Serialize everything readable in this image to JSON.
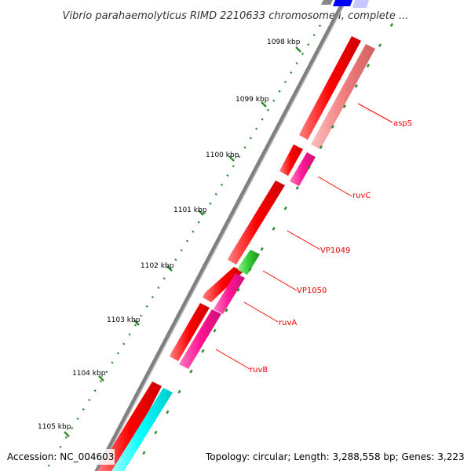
{
  "title": "Vibrio parahaemolyticus RIMD 2210633 chromosome I, complete ...",
  "accession": "Accession: NC_004603",
  "topology": "Topology: circular; Length: 3,288,558 bp; Genes: 3,223",
  "ticks": [
    "1098 kbp",
    "1099 kbp",
    "1100 kbp",
    "1101 kbp",
    "1102 kbp",
    "1103 kbp",
    "1104 kbp",
    "1105 kbp"
  ],
  "genes": [
    {
      "label": "aspS",
      "color": "#f08080"
    },
    {
      "label": "ruvC",
      "color": "#ff1493"
    },
    {
      "label": "VP1049",
      "color": "#ff0000"
    },
    {
      "label": "VP1050",
      "color": "#33cc33"
    },
    {
      "label": "ruvA",
      "color": "#ff1493"
    },
    {
      "label": "ruvB",
      "color": "#ff1493"
    }
  ],
  "colors": {
    "backbone": "#808080",
    "cds": "#ff0000",
    "tick": "#2e8b2e",
    "label_line": "#ff0000",
    "blue_feature": "#0000ff",
    "cyan_feature": "#00ffff"
  }
}
